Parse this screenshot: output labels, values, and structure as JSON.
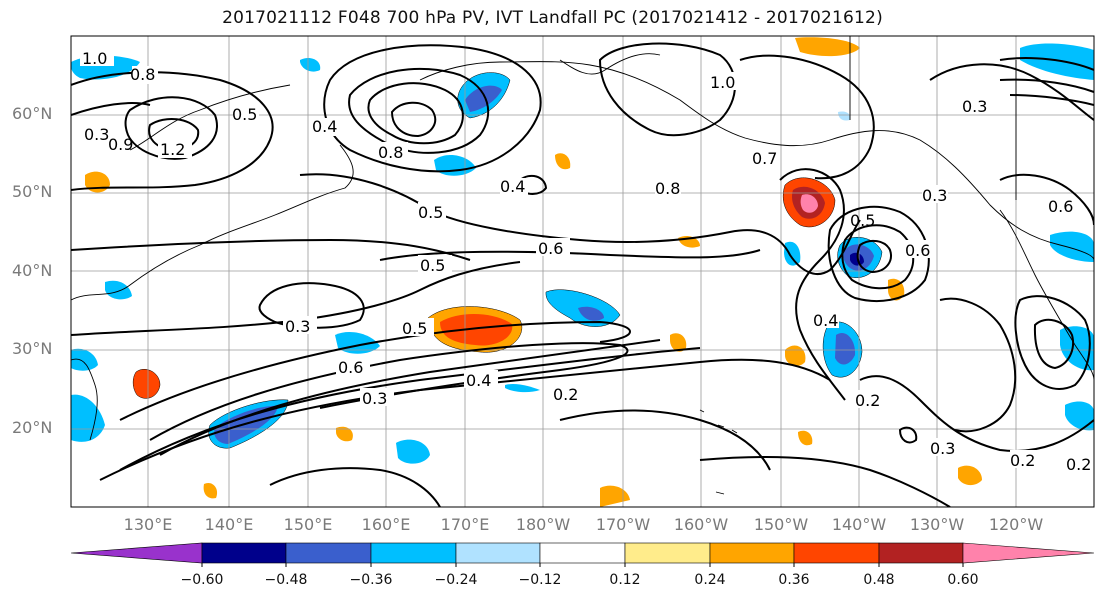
{
  "title": "2017021112 F048 700 hPa PV, IVT Landfall PC (2017021412 - 2017021612)",
  "latitude_labels": [
    "60°N",
    "50°N",
    "40°N",
    "30°N",
    "20°N"
  ],
  "longitude_labels": [
    "130°E",
    "140°E",
    "150°E",
    "160°E",
    "170°E",
    "180°W",
    "170°W",
    "160°W",
    "150°W",
    "140°W",
    "130°W",
    "120°W"
  ],
  "contour_labels": [
    "1.0",
    "0.8",
    "0.5",
    "0.4",
    "0.3",
    "1.2",
    "0.9",
    "0.8",
    "0.4",
    "0.5",
    "0.6",
    "0.5",
    "0.3",
    "0.5",
    "0.6",
    "0.4",
    "0.3",
    "0.2",
    "0.6",
    "0.5",
    "0.4",
    "0.2",
    "0.3",
    "0.2",
    "0.3",
    "0.6",
    "0.7",
    "1.0",
    "0.8",
    "0.3",
    "0.2"
  ],
  "colorbar": {
    "ticks": [
      "−0.60",
      "−0.48",
      "−0.36",
      "−0.24",
      "−0.12",
      "0.12",
      "0.24",
      "0.36",
      "0.48",
      "0.60"
    ],
    "colors": [
      "#9932cc",
      "#00008b",
      "#3a5fcd",
      "#00bfff",
      "#b0e2ff",
      "#ffffff",
      "#ffec8b",
      "#ffa500",
      "#ff4500",
      "#b22222",
      "#ff82ab"
    ]
  }
}
